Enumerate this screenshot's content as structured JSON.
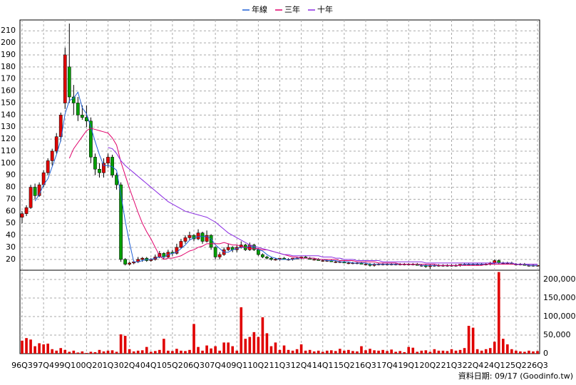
{
  "chart_data": {
    "type": "candlestick",
    "categories": [
      "96Q3",
      null,
      null,
      null,
      null,
      "97Q4",
      null,
      null,
      null,
      null,
      "99Q1",
      null,
      null,
      null,
      null,
      "00Q2",
      null,
      null,
      null,
      null,
      "01Q3",
      null,
      null,
      null,
      null,
      "02Q4",
      null,
      null,
      null,
      null,
      "04Q1",
      null,
      null,
      null,
      null,
      "05Q2",
      null,
      null,
      null,
      null,
      "06Q3",
      null,
      null,
      null,
      null,
      "07Q4",
      null,
      null,
      null,
      null,
      "09Q1",
      null,
      null,
      null,
      null,
      "10Q2",
      null,
      null,
      null,
      null,
      "11Q3",
      null,
      null,
      null,
      null,
      "12Q4",
      null,
      null,
      null,
      null,
      "14Q1",
      null,
      null,
      null,
      null,
      "15Q2",
      null,
      null,
      null,
      null,
      "16Q3",
      null,
      null,
      null,
      null,
      "17Q4",
      null,
      null,
      null,
      null,
      "19Q1",
      null,
      null,
      null,
      null,
      "20Q2",
      null,
      null,
      null,
      null,
      "21Q3",
      null,
      null,
      null,
      null,
      "22Q4",
      null,
      null,
      null,
      null,
      "24Q1",
      null,
      null,
      null,
      null,
      "25Q2",
      null,
      null,
      null,
      null,
      "26Q3"
    ],
    "ohlc": [
      [
        55,
        60,
        50,
        58
      ],
      [
        58,
        65,
        56,
        63
      ],
      [
        63,
        82,
        62,
        80
      ],
      [
        80,
        83,
        70,
        73
      ],
      [
        73,
        84,
        72,
        82
      ],
      [
        82,
        94,
        80,
        92
      ],
      [
        92,
        104,
        90,
        102
      ],
      [
        102,
        112,
        98,
        110
      ],
      [
        110,
        125,
        108,
        122
      ],
      [
        122,
        142,
        118,
        140
      ],
      [
        150,
        196,
        145,
        190
      ],
      [
        180,
        216,
        150,
        155
      ],
      [
        155,
        165,
        140,
        150
      ],
      [
        150,
        155,
        135,
        140
      ],
      [
        140,
        148,
        136,
        138
      ],
      [
        138,
        148,
        130,
        135
      ],
      [
        135,
        138,
        100,
        105
      ],
      [
        105,
        108,
        90,
        95
      ],
      [
        95,
        100,
        88,
        92
      ],
      [
        92,
        104,
        88,
        100
      ],
      [
        100,
        108,
        96,
        105
      ],
      [
        105,
        107,
        88,
        90
      ],
      [
        90,
        92,
        78,
        82
      ],
      [
        82,
        84,
        18,
        20
      ],
      [
        20,
        21,
        15,
        16
      ],
      [
        16,
        18,
        15,
        17
      ],
      [
        17,
        19,
        16,
        18
      ],
      [
        18,
        22,
        17,
        20
      ],
      [
        20,
        22,
        18,
        21
      ],
      [
        21,
        22,
        18,
        19
      ],
      [
        19,
        21,
        18,
        20
      ],
      [
        20,
        24,
        19,
        22
      ],
      [
        22,
        27,
        21,
        25
      ],
      [
        25,
        26,
        20,
        22
      ],
      [
        22,
        28,
        21,
        26
      ],
      [
        26,
        28,
        23,
        25
      ],
      [
        25,
        33,
        24,
        30
      ],
      [
        30,
        37,
        29,
        35
      ],
      [
        35,
        40,
        33,
        38
      ],
      [
        38,
        43,
        36,
        40
      ],
      [
        40,
        41,
        35,
        37
      ],
      [
        37,
        45,
        36,
        42
      ],
      [
        42,
        43,
        33,
        35
      ],
      [
        35,
        44,
        34,
        40
      ],
      [
        40,
        41,
        28,
        30
      ],
      [
        30,
        31,
        20,
        22
      ],
      [
        22,
        26,
        20,
        24
      ],
      [
        24,
        30,
        23,
        28
      ],
      [
        28,
        33,
        27,
        30
      ],
      [
        30,
        31,
        26,
        28
      ],
      [
        28,
        32,
        26,
        30
      ],
      [
        30,
        35,
        29,
        32
      ],
      [
        32,
        33,
        27,
        28
      ],
      [
        28,
        34,
        27,
        32
      ],
      [
        32,
        33,
        27,
        28
      ],
      [
        28,
        29,
        23,
        24
      ],
      [
        24,
        25,
        21,
        22
      ],
      [
        22,
        23,
        20,
        21
      ],
      [
        21,
        22,
        19,
        20
      ],
      [
        20,
        21,
        19,
        20
      ],
      [
        20,
        21,
        19,
        21
      ],
      [
        21,
        22,
        20,
        20
      ],
      [
        20,
        21,
        19,
        20
      ],
      [
        20,
        21,
        19,
        21
      ],
      [
        21,
        22,
        20,
        21
      ],
      [
        21,
        22,
        20,
        22
      ],
      [
        22,
        23,
        21,
        21
      ],
      [
        21,
        22,
        20,
        20
      ],
      [
        20,
        21,
        19,
        20
      ],
      [
        20,
        21,
        19,
        19
      ],
      [
        19,
        20,
        18,
        19
      ],
      [
        19,
        20,
        18,
        19
      ],
      [
        19,
        20,
        18,
        18
      ],
      [
        18,
        19,
        17,
        18
      ],
      [
        18,
        19,
        17,
        18
      ],
      [
        18,
        19,
        17,
        17
      ],
      [
        17,
        18,
        16,
        17
      ],
      [
        17,
        18,
        16,
        17
      ],
      [
        17,
        18,
        16,
        17
      ],
      [
        17,
        18,
        16,
        16
      ],
      [
        16,
        17,
        15,
        16
      ],
      [
        16,
        17,
        14,
        15
      ],
      [
        15,
        17,
        14,
        16
      ],
      [
        16,
        17,
        15,
        16
      ],
      [
        16,
        17,
        15,
        16
      ],
      [
        16,
        17,
        15,
        16
      ],
      [
        16,
        17,
        15,
        16
      ],
      [
        16,
        17,
        15,
        16
      ],
      [
        16,
        17,
        15,
        16
      ],
      [
        16,
        17,
        15,
        16
      ],
      [
        16,
        17,
        15,
        16
      ],
      [
        16,
        17,
        15,
        16
      ],
      [
        16,
        17,
        15,
        15
      ],
      [
        15,
        16,
        14,
        15
      ],
      [
        15,
        16,
        13,
        14
      ],
      [
        14,
        16,
        12,
        15
      ],
      [
        15,
        16,
        14,
        15
      ],
      [
        15,
        16,
        14,
        15
      ],
      [
        15,
        16,
        14,
        15
      ],
      [
        15,
        16,
        14,
        15
      ],
      [
        15,
        16,
        14,
        15
      ],
      [
        15,
        16,
        14,
        15
      ],
      [
        15,
        16,
        14,
        16
      ],
      [
        16,
        17,
        15,
        16
      ],
      [
        16,
        17,
        15,
        16
      ],
      [
        16,
        17,
        15,
        16
      ],
      [
        16,
        17,
        15,
        16
      ],
      [
        16,
        17,
        15,
        16
      ],
      [
        16,
        17,
        15,
        16
      ],
      [
        16,
        18,
        15,
        17
      ],
      [
        17,
        20,
        16,
        19
      ],
      [
        19,
        20,
        16,
        17
      ],
      [
        17,
        18,
        16,
        17
      ],
      [
        17,
        18,
        16,
        17
      ],
      [
        17,
        18,
        16,
        16
      ],
      [
        16,
        17,
        15,
        16
      ],
      [
        16,
        17,
        15,
        16
      ],
      [
        16,
        17,
        15,
        15
      ],
      [
        15,
        16,
        14,
        15
      ],
      [
        15,
        16,
        14,
        15
      ],
      [
        15,
        15,
        14,
        15
      ]
    ],
    "up_color": "#e00000",
    "down_color": "#00a000",
    "series": [
      {
        "name": "年線",
        "color": "#1f5fd6",
        "values": [
          null,
          null,
          null,
          68.5,
          74,
          82,
          87,
          97,
          107,
          119,
          141,
          152,
          154,
          159,
          146,
          141,
          130,
          118,
          107,
          98,
          98,
          97,
          94,
          74,
          52,
          34,
          18,
          18,
          19,
          20,
          20,
          21,
          22,
          22,
          24,
          25,
          26,
          29,
          32,
          36,
          38,
          39,
          39,
          39,
          37,
          32,
          29,
          26,
          26,
          28,
          29,
          30,
          30,
          31,
          30,
          28,
          27,
          24,
          22,
          21,
          20,
          20,
          20,
          20,
          21,
          21,
          21,
          21,
          21,
          20,
          20,
          19,
          19,
          19,
          18,
          18,
          18,
          17,
          17,
          17,
          17,
          16,
          16,
          16,
          16,
          16,
          16,
          16,
          16,
          16,
          16,
          16,
          16,
          15,
          15,
          15,
          15,
          15,
          15,
          15,
          15,
          15,
          15,
          16,
          16,
          16,
          16,
          16,
          16,
          16,
          17,
          17,
          17,
          17,
          17,
          16,
          16,
          16,
          15,
          15,
          15
        ]
      },
      {
        "name": "三年",
        "color": "#e0006a",
        "values": [
          null,
          null,
          null,
          null,
          null,
          null,
          null,
          null,
          null,
          null,
          null,
          104,
          112,
          117,
          122,
          127,
          129,
          128,
          127,
          126,
          125,
          121,
          115,
          101,
          90,
          79,
          69,
          59,
          50,
          43,
          37,
          30,
          23,
          20,
          21,
          21,
          22,
          23,
          25,
          27,
          28,
          30,
          31,
          33,
          33,
          33,
          33,
          34,
          33,
          32,
          32,
          31,
          30,
          29,
          29,
          29,
          28,
          28,
          27,
          26,
          25,
          24,
          23,
          22,
          22,
          21,
          21,
          21,
          21,
          20,
          20,
          20,
          20,
          20,
          19,
          19,
          19,
          19,
          18,
          18,
          18,
          18,
          18,
          17,
          17,
          17,
          17,
          17,
          16,
          16,
          16,
          16,
          16,
          16,
          16,
          16,
          16,
          15,
          15,
          15,
          15,
          15,
          15,
          15,
          15,
          15,
          15,
          15,
          16,
          16,
          16,
          16,
          16,
          16,
          16,
          16,
          16,
          16,
          16,
          16,
          16
        ]
      },
      {
        "name": "十年",
        "color": "#8a2be2",
        "values": [
          null,
          null,
          null,
          null,
          null,
          null,
          null,
          null,
          null,
          null,
          null,
          null,
          null,
          null,
          null,
          null,
          null,
          null,
          null,
          null,
          113,
          112,
          108,
          102,
          98,
          95,
          92,
          89,
          86,
          83,
          80,
          77,
          74,
          71,
          68,
          66,
          64,
          62,
          60,
          59,
          58,
          57,
          56,
          55,
          53,
          51,
          48,
          45,
          42,
          40,
          38,
          36,
          34,
          32,
          31,
          30,
          29,
          28,
          27,
          26,
          25,
          24,
          24,
          23,
          23,
          23,
          23,
          23,
          23,
          23,
          22,
          22,
          22,
          21,
          21,
          20,
          20,
          20,
          19,
          19,
          19,
          19,
          19,
          19,
          18,
          18,
          18,
          18,
          18,
          18,
          18,
          18,
          18,
          18,
          17,
          17,
          17,
          17,
          17,
          17,
          17,
          17,
          17,
          17,
          17,
          17,
          17,
          17,
          17,
          17,
          17,
          17,
          17,
          17,
          17,
          16,
          16,
          16,
          16,
          16,
          16
        ]
      }
    ],
    "ylim": [
      11,
      219
    ],
    "yticks": [
      20,
      30,
      40,
      50,
      60,
      70,
      80,
      90,
      100,
      110,
      120,
      130,
      140,
      150,
      160,
      170,
      180,
      190,
      200,
      210
    ],
    "grid": true,
    "legend": "top",
    "volume": {
      "type": "bar",
      "color": "#e00000",
      "values": [
        35000,
        42000,
        38000,
        20000,
        28000,
        25000,
        27000,
        12000,
        8000,
        15000,
        10000,
        5000,
        8000,
        3000,
        6000,
        2000,
        5000,
        4000,
        10000,
        6000,
        8000,
        9000,
        5000,
        52000,
        48000,
        12000,
        6000,
        8000,
        9000,
        18000,
        5000,
        7000,
        10000,
        40000,
        8000,
        7000,
        13000,
        8000,
        7000,
        10000,
        80000,
        18000,
        8000,
        22000,
        14000,
        20000,
        8000,
        30000,
        30000,
        20000,
        8000,
        125000,
        40000,
        45000,
        58000,
        45000,
        98000,
        55000,
        20000,
        30000,
        10000,
        22000,
        10000,
        8000,
        12000,
        25000,
        8000,
        10000,
        6000,
        8000,
        5000,
        8000,
        9000,
        7000,
        13000,
        8000,
        10000,
        7000,
        6000,
        20000,
        9000,
        13000,
        9000,
        8000,
        10000,
        7000,
        11000,
        5000,
        7000,
        4000,
        18000,
        16000,
        5000,
        8000,
        9000,
        5000,
        12000,
        8000,
        8000,
        7000,
        12000,
        8000,
        10000,
        15000,
        75000,
        70000,
        12000,
        8000,
        12000,
        15000,
        32000,
        220000,
        40000,
        25000,
        12000,
        8000,
        6000,
        5000,
        8000,
        6000,
        7000
      ],
      "ylim": [
        0,
        225000
      ],
      "yticks": [
        0,
        {
          "value": 50000,
          "label": "50,000"
        },
        {
          "value": 100000,
          "label": "100,000"
        },
        {
          "value": 150000,
          "label": "150,000"
        },
        {
          "value": 200000,
          "label": "200,000"
        }
      ]
    },
    "footnote": "資料日期: 09/17  (Goodinfo.tw)"
  }
}
